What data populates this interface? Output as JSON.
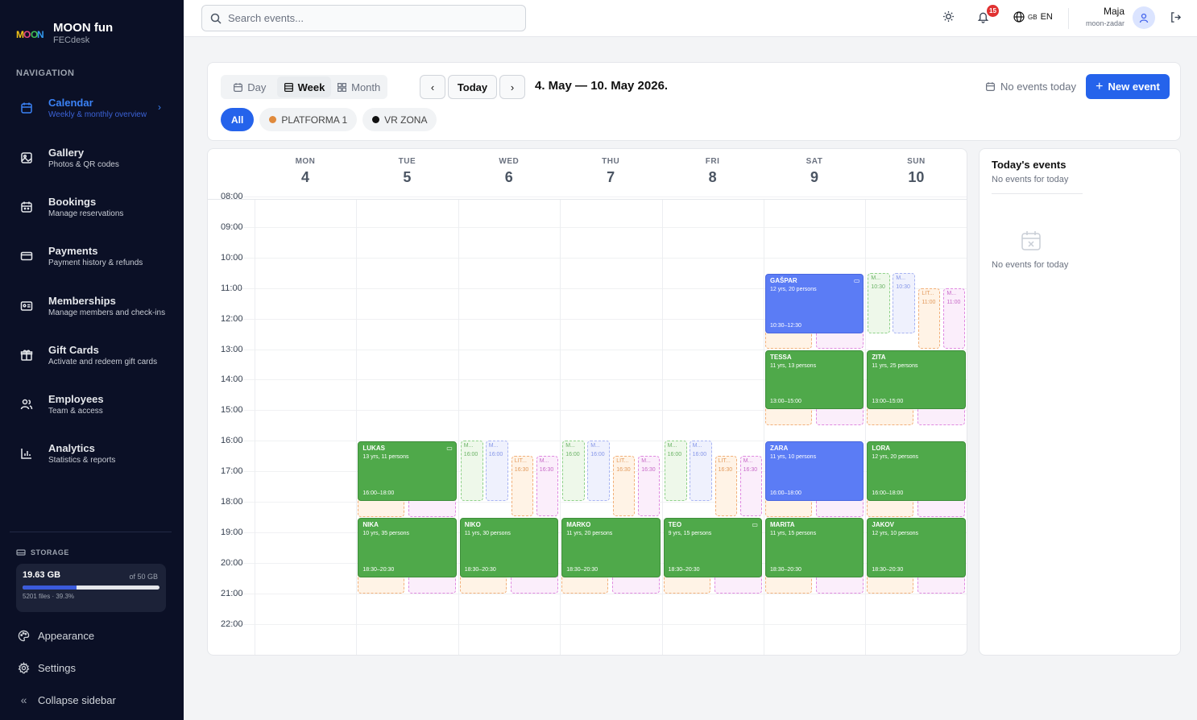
{
  "brand": {
    "title": "MOON fun",
    "subtitle": "FECdesk",
    "logo_text": "MOON"
  },
  "nav": {
    "heading": "NAVIGATION",
    "items": [
      {
        "label": "Calendar",
        "sub": "Weekly & monthly overview",
        "icon": "calendar-icon",
        "active": true
      },
      {
        "label": "Gallery",
        "sub": "Photos & QR codes",
        "icon": "image-icon"
      },
      {
        "label": "Bookings",
        "sub": "Manage reservations",
        "icon": "calendar-check-icon"
      },
      {
        "label": "Payments",
        "sub": "Payment history & refunds",
        "icon": "credit-card-icon"
      },
      {
        "label": "Memberships",
        "sub": "Manage members and check-ins",
        "icon": "id-card-icon"
      },
      {
        "label": "Gift Cards",
        "sub": "Activate and redeem gift cards",
        "icon": "gift-icon"
      },
      {
        "label": "Employees",
        "sub": "Team & access",
        "icon": "users-icon"
      },
      {
        "label": "Analytics",
        "sub": "Statistics & reports",
        "icon": "chart-icon"
      }
    ]
  },
  "storage": {
    "label": "STORAGE",
    "used": "19.63 GB",
    "total": "of 50 GB",
    "files": "5201 files · 39.3%",
    "percent": 39.3
  },
  "sidebar_bottom": {
    "appearance": "Appearance",
    "settings": "Settings",
    "collapse": "Collapse sidebar"
  },
  "topbar": {
    "search_placeholder": "Search events...",
    "notification_count": "15",
    "lang_flag": "GB",
    "lang": "EN",
    "user_name": "Maja",
    "user_role": "moon-zadar"
  },
  "toolbar": {
    "views": [
      "Day",
      "Week",
      "Month"
    ],
    "active_view": "Week",
    "today": "Today",
    "range": "4. May — 10. May 2026.",
    "no_events": "No events today",
    "new_event": "New event",
    "filters": [
      {
        "label": "All",
        "active": true
      },
      {
        "label": "PLATFORMA 1",
        "color": "#e08a3c"
      },
      {
        "label": "VR ZONA",
        "color": "#111111"
      }
    ]
  },
  "calendar": {
    "days": [
      {
        "name": "MON",
        "num": "4"
      },
      {
        "name": "TUE",
        "num": "5"
      },
      {
        "name": "WED",
        "num": "6"
      },
      {
        "name": "THU",
        "num": "7"
      },
      {
        "name": "FRI",
        "num": "8"
      },
      {
        "name": "SAT",
        "num": "9"
      },
      {
        "name": "SUN",
        "num": "10"
      }
    ],
    "hours": [
      "08:00",
      "09:00",
      "10:00",
      "11:00",
      "12:00",
      "13:00",
      "14:00",
      "15:00",
      "16:00",
      "17:00",
      "18:00",
      "19:00",
      "20:00",
      "21:00",
      "22:00"
    ],
    "ghost_text": {
      "g": "M...",
      "b": "M...",
      "o": "LIT...",
      "p": "M...",
      "t1": "16:00",
      "t2": "16:30",
      "t3": "10:30",
      "t4": "11:00"
    },
    "events": [
      {
        "name": "GAŠPAR",
        "desc": "12 yrs, 20 persons",
        "time": "10:30–12:30",
        "color": "blue",
        "comment": true
      },
      {
        "name": "TESSA",
        "desc": "11 yrs, 13 persons",
        "time": "13:00–15:00",
        "color": "green"
      },
      {
        "name": "ZITA",
        "desc": "11 yrs, 25 persons",
        "time": "13:00–15:00",
        "color": "green"
      },
      {
        "name": "LUKAS",
        "desc": "13 yrs, 11 persons",
        "time": "16:00–18:00",
        "color": "green",
        "comment": true
      },
      {
        "name": "ZARA",
        "desc": "11 yrs, 10 persons",
        "time": "16:00–18:00",
        "color": "blue"
      },
      {
        "name": "LORA",
        "desc": "12 yrs, 20 persons",
        "time": "16:00–18:00",
        "color": "green"
      },
      {
        "name": "NIKA",
        "desc": "10 yrs, 35 persons",
        "time": "18:30–20:30",
        "color": "green"
      },
      {
        "name": "NIKO",
        "desc": "11 yrs, 30 persons",
        "time": "18:30–20:30",
        "color": "green"
      },
      {
        "name": "MARKO",
        "desc": "11 yrs, 20 persons",
        "time": "18:30–20:30",
        "color": "green"
      },
      {
        "name": "TEO",
        "desc": "9 yrs, 15 persons",
        "time": "18:30–20:30",
        "color": "green",
        "comment": true
      },
      {
        "name": "MARITA",
        "desc": "11 yrs, 15 persons",
        "time": "18:30–20:30",
        "color": "green"
      },
      {
        "name": "JAKOV",
        "desc": "12 yrs, 10 persons",
        "time": "18:30–20:30",
        "color": "green"
      }
    ]
  },
  "today_panel": {
    "title": "Today's events",
    "subtitle": "No events for today",
    "empty": "No events for today"
  }
}
